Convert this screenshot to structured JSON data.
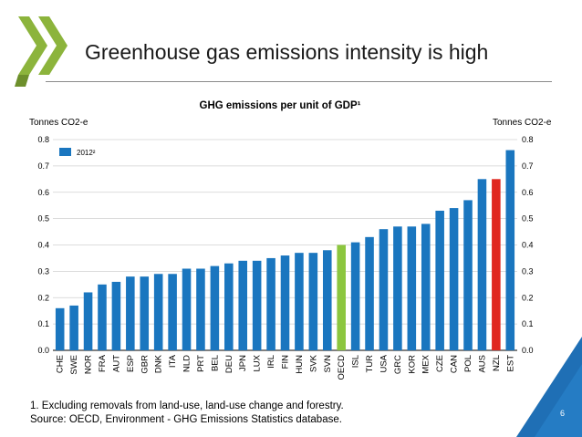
{
  "slide": {
    "title": "Greenhouse gas emissions intensity is high",
    "footnote_1": "1. Excluding removals from land-use, land-use change and forestry.",
    "footnote_2": "Source: OECD, Environment - GHG Emissions Statistics database.",
    "page_number": "6"
  },
  "colors": {
    "bar": "#1a76bf",
    "oecd": "#8cc63f",
    "nzl": "#e0261f",
    "brand_green": "#8cb43c"
  },
  "chart_data": {
    "type": "bar",
    "title": "GHG emissions per unit of GDP¹",
    "ylabel_left": "Tonnes CO2-e",
    "ylabel_right": "Tonnes CO2-e",
    "ylim": [
      0,
      0.8
    ],
    "yticks": [
      "0.0",
      "0.1",
      "0.2",
      "0.3",
      "0.4",
      "0.5",
      "0.6",
      "0.7",
      "0.8"
    ],
    "legend": {
      "label": "2012²",
      "position": "top-left"
    },
    "categories": [
      "CHE",
      "SWE",
      "NOR",
      "FRA",
      "AUT",
      "ESP",
      "GBR",
      "DNK",
      "ITA",
      "NLD",
      "PRT",
      "BEL",
      "DEU",
      "JPN",
      "LUX",
      "IRL",
      "FIN",
      "HUN",
      "SVK",
      "SVN",
      "OECD",
      "ISL",
      "TUR",
      "USA",
      "GRC",
      "KOR",
      "MEX",
      "CZE",
      "CAN",
      "POL",
      "AUS",
      "NZL",
      "EST"
    ],
    "values": [
      0.16,
      0.17,
      0.22,
      0.25,
      0.26,
      0.28,
      0.28,
      0.29,
      0.29,
      0.31,
      0.31,
      0.32,
      0.33,
      0.34,
      0.34,
      0.35,
      0.36,
      0.37,
      0.37,
      0.38,
      0.4,
      0.41,
      0.43,
      0.46,
      0.47,
      0.47,
      0.48,
      0.53,
      0.54,
      0.57,
      0.65,
      0.65,
      0.76
    ],
    "highlight": {
      "OECD": "oecd",
      "NZL": "nzl"
    }
  }
}
